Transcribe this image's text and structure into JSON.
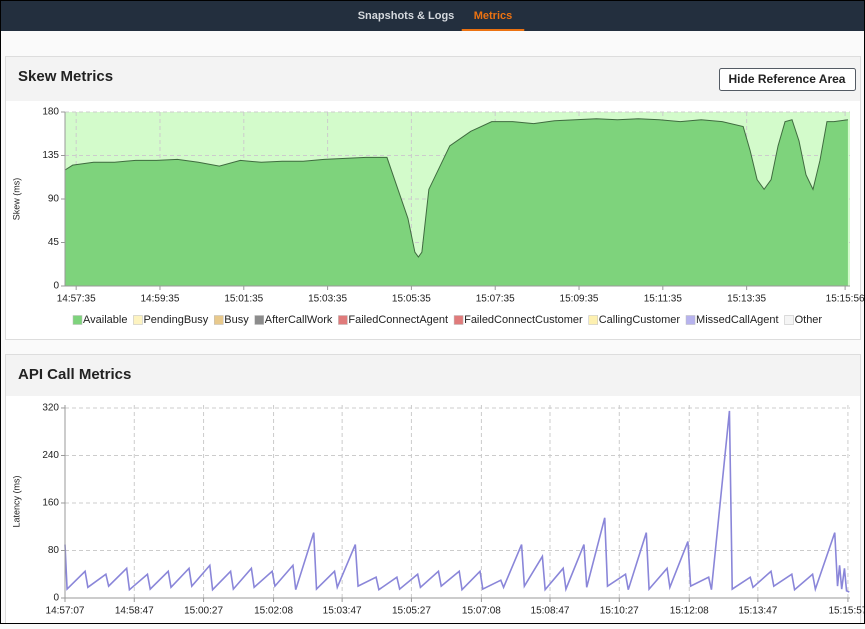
{
  "nav": {
    "tabs": [
      "Snapshots & Logs",
      "Metrics"
    ],
    "active": 1
  },
  "skew": {
    "title": "Skew Metrics",
    "button": "Hide Reference Area",
    "chart_data": {
      "type": "area",
      "y_label": "Skew (ms)",
      "reference_area_color": "#d3fbcb",
      "grid": true,
      "x": [
        "14:57:19",
        "14:57:30",
        "14:58:00",
        "14:58:30",
        "14:59:00",
        "14:59:30",
        "15:00:00",
        "15:00:30",
        "15:01:00",
        "15:01:30",
        "15:02:00",
        "15:02:30",
        "15:03:00",
        "15:03:30",
        "15:04:00",
        "15:04:30",
        "15:05:00",
        "15:05:30",
        "15:05:40",
        "15:05:45",
        "15:05:50",
        "15:06:00",
        "15:06:30",
        "15:07:00",
        "15:07:30",
        "15:08:00",
        "15:08:30",
        "15:09:00",
        "15:09:30",
        "15:10:00",
        "15:10:30",
        "15:11:00",
        "15:11:30",
        "15:12:00",
        "15:12:30",
        "15:13:00",
        "15:13:30",
        "15:13:40",
        "15:13:50",
        "15:14:00",
        "15:14:10",
        "15:14:20",
        "15:14:30",
        "15:14:40",
        "15:14:50",
        "15:15:00",
        "15:15:10",
        "15:15:20",
        "15:15:30",
        "15:15:40",
        "15:16:00"
      ],
      "series": [
        {
          "name": "Available",
          "color": "#7ed37c",
          "values": [
            120,
            125,
            128,
            128,
            130,
            130,
            131,
            128,
            124,
            130,
            128,
            129,
            129,
            131,
            132,
            133,
            133,
            70,
            35,
            30,
            35,
            100,
            145,
            160,
            170,
            170,
            168,
            171,
            172,
            173,
            172,
            173,
            172,
            170,
            172,
            170,
            165,
            140,
            110,
            100,
            110,
            145,
            170,
            172,
            150,
            115,
            100,
            130,
            170,
            170,
            172
          ]
        },
        {
          "name": "PendingBusy",
          "color": "#fdf3c0"
        },
        {
          "name": "Busy",
          "color": "#e8c98c"
        },
        {
          "name": "AfterCallWork",
          "color": "#8c8c8c"
        },
        {
          "name": "FailedConnectAgent",
          "color": "#e07b7b"
        },
        {
          "name": "FailedConnectCustomer",
          "color": "#e07b7b"
        },
        {
          "name": "CallingCustomer",
          "color": "#fdf0b0"
        },
        {
          "name": "MissedCallAgent",
          "color": "#b7b3ee"
        },
        {
          "name": "Other",
          "color": "#f5f5f5"
        }
      ],
      "xlim": [
        "14:57:19",
        "15:16:03"
      ],
      "xticks": [
        "14:57:35",
        "14:59:35",
        "15:01:35",
        "15:03:35",
        "15:05:35",
        "15:07:35",
        "15:09:35",
        "15:11:35",
        "15:13:35",
        "15:15:56"
      ],
      "ylim": [
        0,
        180
      ],
      "yticks": [
        0,
        45,
        90,
        135,
        180
      ]
    }
  },
  "api": {
    "title": "API Call Metrics",
    "chart_data": {
      "type": "line",
      "y_label": "Latency (ms)",
      "grid": true,
      "x": [
        "14:57:07",
        "14:57:10",
        "14:57:36",
        "14:57:40",
        "14:58:06",
        "14:58:10",
        "14:58:36",
        "14:58:40",
        "14:59:06",
        "14:59:10",
        "14:59:36",
        "14:59:40",
        "15:00:06",
        "15:00:10",
        "15:00:36",
        "15:00:40",
        "15:01:06",
        "15:01:10",
        "15:01:36",
        "15:01:40",
        "15:02:06",
        "15:02:10",
        "15:02:36",
        "15:02:40",
        "15:03:06",
        "15:03:10",
        "15:03:36",
        "15:03:40",
        "15:04:06",
        "15:04:10",
        "15:04:36",
        "15:04:40",
        "15:05:06",
        "15:05:10",
        "15:05:36",
        "15:05:40",
        "15:06:06",
        "15:06:10",
        "15:06:36",
        "15:06:40",
        "15:07:06",
        "15:07:10",
        "15:07:36",
        "15:07:40",
        "15:08:06",
        "15:08:10",
        "15:08:36",
        "15:08:40",
        "15:09:06",
        "15:09:10",
        "15:09:36",
        "15:09:40",
        "15:10:06",
        "15:10:10",
        "15:10:36",
        "15:10:40",
        "15:11:06",
        "15:11:10",
        "15:11:36",
        "15:11:40",
        "15:12:06",
        "15:12:10",
        "15:12:36",
        "15:12:40",
        "15:13:06",
        "15:13:10",
        "15:13:36",
        "15:13:40",
        "15:14:06",
        "15:14:10",
        "15:14:36",
        "15:14:40",
        "15:15:06",
        "15:15:10",
        "15:15:38",
        "15:15:42",
        "15:15:45",
        "15:15:48",
        "15:15:52",
        "15:15:55",
        "15:15:59"
      ],
      "series": [
        {
          "name": "Latency",
          "color": "#8a86d9",
          "values": [
            90,
            15,
            45,
            18,
            40,
            20,
            50,
            14,
            40,
            15,
            45,
            18,
            50,
            20,
            55,
            14,
            45,
            15,
            50,
            18,
            45,
            20,
            55,
            14,
            110,
            15,
            45,
            18,
            90,
            20,
            35,
            14,
            35,
            15,
            40,
            18,
            45,
            20,
            45,
            14,
            45,
            15,
            30,
            18,
            90,
            20,
            70,
            14,
            50,
            15,
            90,
            18,
            135,
            20,
            40,
            14,
            110,
            15,
            50,
            18,
            95,
            20,
            35,
            14,
            315,
            15,
            35,
            18,
            45,
            20,
            40,
            14,
            40,
            15,
            110,
            20,
            55,
            15,
            50,
            12,
            10
          ]
        }
      ],
      "xlim": [
        "14:57:07",
        "15:16:00"
      ],
      "xticks": [
        "14:57:07",
        "14:58:47",
        "15:00:27",
        "15:02:08",
        "15:03:47",
        "15:05:27",
        "15:07:08",
        "15:08:47",
        "15:10:27",
        "15:12:08",
        "15:13:47",
        "15:15:57"
      ],
      "ylim": [
        0,
        325
      ],
      "yticks": [
        0,
        80,
        160,
        240,
        320
      ]
    }
  }
}
